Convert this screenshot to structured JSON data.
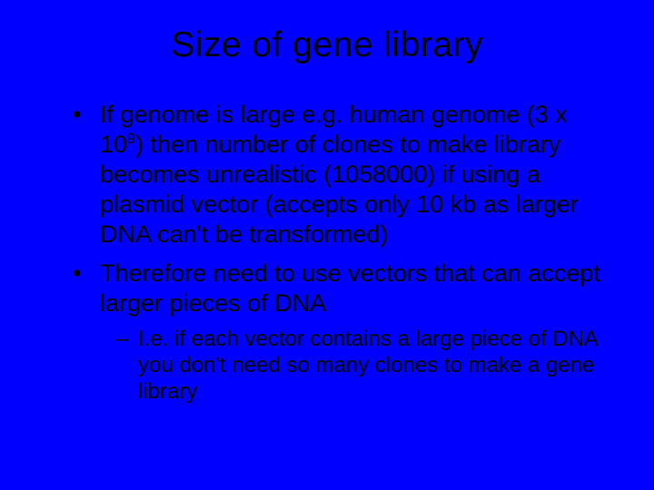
{
  "background_color": "#0000ff",
  "text_color": "#000000",
  "font_family": "Arial",
  "title": {
    "text": "Size of gene library",
    "fontsize": 39,
    "align": "center"
  },
  "bullets": [
    {
      "html": "If genome is large e.g. human genome (3 x 10<sup>9</sup>) then number of clones to make library becomes unrealistic (1058000) if using a plasmid vector (accepts only 10 kb as larger DNA can't be transformed)",
      "fontsize": 27
    },
    {
      "html": "Therefore need to use vectors that can accept larger pieces of DNA",
      "fontsize": 27,
      "sub": [
        {
          "html": "I.e. if each vector contains a large piece of DNA you don't need so many clones to make a gene library",
          "fontsize": 24
        }
      ]
    }
  ]
}
